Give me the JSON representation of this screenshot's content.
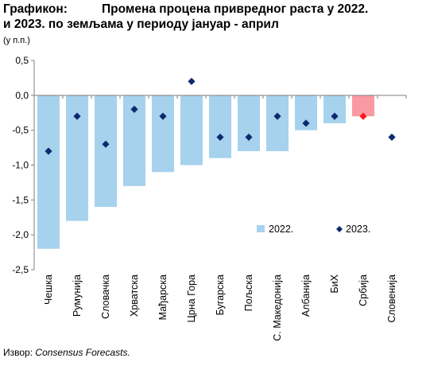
{
  "title_label": "Графикон:",
  "title_line1": "Промена процена привредног раста у 2022.",
  "title_line2": "и 2023. по земљама у периоду јануар  - април",
  "unit": "(у п.п.)",
  "source_label": "Извор:",
  "source_name": "Consensus Forecasts.",
  "colors": {
    "bar_2022": "#a6d2ee",
    "bar_2022_highlight": "#f99aa3",
    "marker_2023": "#0e2a6e",
    "marker_2023_highlight": "#ff1a1a",
    "axis": "#7f7f7f"
  },
  "chart_data": {
    "type": "bar",
    "categories": [
      "Чешка",
      "Румунија",
      "Словачка",
      "Хрватска",
      "Мађарска",
      "Црна Гора",
      "Бугарска",
      "Пољска",
      "С. Македонија",
      "Албанија",
      "БиХ",
      "Србија",
      "Словенија"
    ],
    "series": [
      {
        "name": "2022.",
        "kind": "bar",
        "values": [
          -2.2,
          -1.8,
          -1.6,
          -1.3,
          -1.1,
          -1.0,
          -0.9,
          -0.8,
          -0.8,
          -0.5,
          -0.4,
          -0.3,
          null
        ]
      },
      {
        "name": "2023.",
        "kind": "marker",
        "values": [
          -0.8,
          -0.3,
          -0.7,
          -0.2,
          -0.3,
          0.2,
          -0.6,
          -0.6,
          -0.3,
          -0.4,
          -0.3,
          -0.3,
          -0.6
        ]
      }
    ],
    "highlight_category": "Србија",
    "ylim": [
      -2.5,
      0.5
    ],
    "yticks": [
      0.5,
      0.0,
      -0.5,
      -1.0,
      -1.5,
      -2.0,
      -2.5
    ],
    "ytick_labels": [
      "0,5",
      "0,0",
      "-0,5",
      "-1,0",
      "-1,5",
      "-2,0",
      "-2,5"
    ],
    "legend_position": "bottom-right inside plot"
  }
}
